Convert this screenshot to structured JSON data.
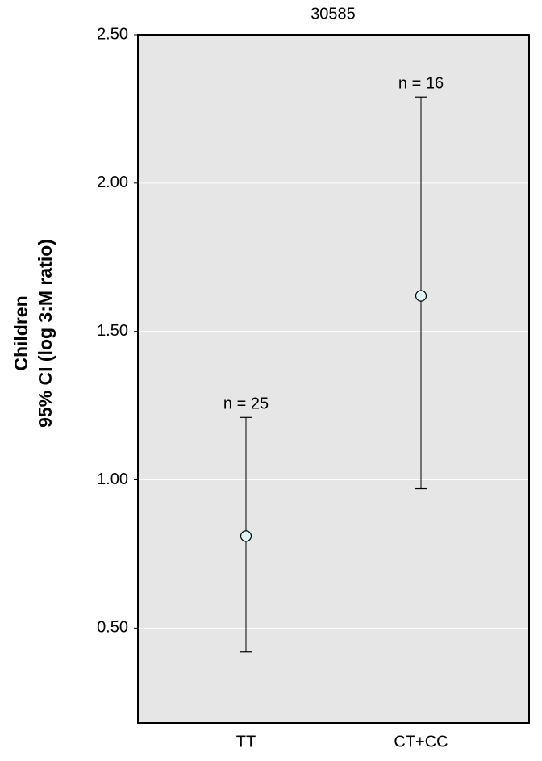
{
  "chart_data": {
    "type": "errorbar",
    "title": "30585",
    "y_label": [
      "Children",
      "95% CI (log 3:M ratio)"
    ],
    "categories": [
      "TT",
      "CT+CC"
    ],
    "values": [
      0.81,
      1.62
    ],
    "lower": [
      0.42,
      0.97
    ],
    "upper": [
      1.21,
      2.29
    ],
    "annotations": [
      "n = 25",
      "n = 16"
    ],
    "ylim": [
      0.18,
      2.5
    ],
    "yticks": [
      {
        "value": 0.5,
        "label": "0.50"
      },
      {
        "value": 1,
        "label": "1.00"
      },
      {
        "value": 1.5,
        "label": "1.50"
      },
      {
        "value": 2,
        "label": "2.00"
      },
      {
        "value": 2.5,
        "label": "2.50"
      }
    ],
    "grid": true,
    "background": "#e6e6e6",
    "marker_color": "#ddf4f4"
  }
}
